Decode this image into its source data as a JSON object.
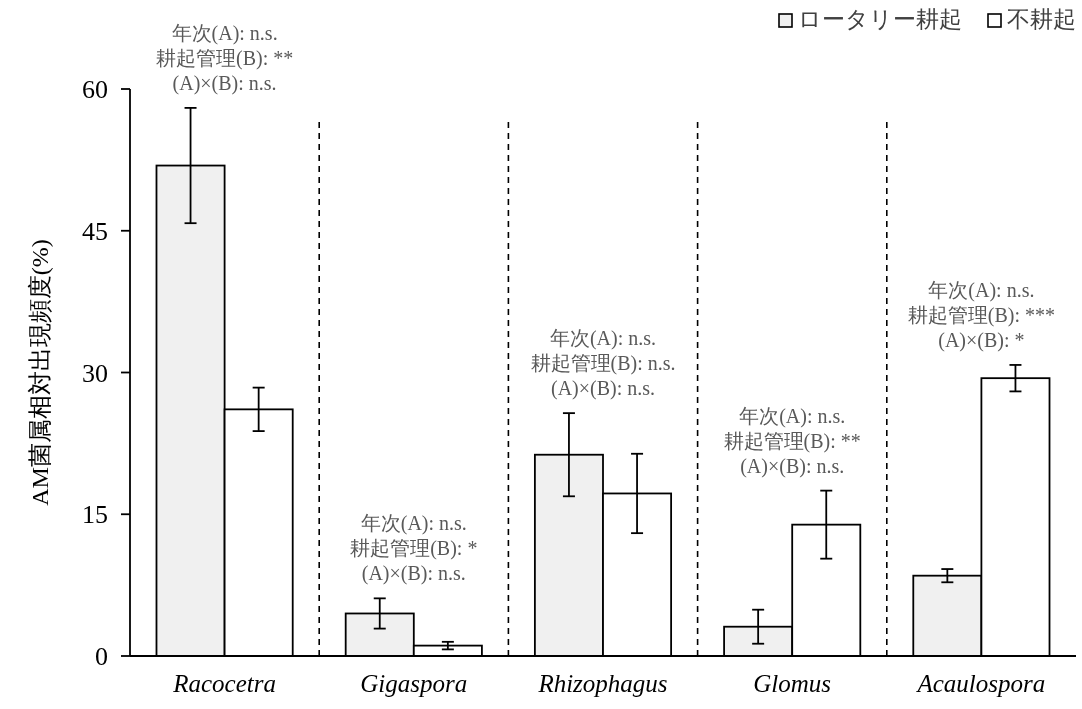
{
  "chart_data": {
    "type": "bar",
    "ylabel": "AM菌属相対出現頻度(%)",
    "categories": [
      "Racocetra",
      "Gigaspora",
      "Rhizophagus",
      "Glomus",
      "Acaulospora"
    ],
    "series": [
      {
        "name": "ロータリー耕起",
        "color": "#f0f0f0",
        "values": [
          51.9,
          4.5,
          21.3,
          3.1,
          8.5
        ],
        "errors": [
          6.1,
          1.6,
          4.4,
          1.8,
          0.7
        ]
      },
      {
        "name": "不耕起",
        "color": "#ffffff",
        "values": [
          26.1,
          1.1,
          17.2,
          13.9,
          29.4
        ],
        "errors": [
          2.3,
          0.4,
          4.2,
          3.6,
          1.4
        ]
      }
    ],
    "ylim": [
      0,
      60
    ],
    "yticks": [
      0,
      15,
      30,
      45,
      60
    ],
    "legend": "top right",
    "annotations": [
      "年次(A): n.s.",
      "耕起管理(B): **",
      "(A)×(B): n.s.",
      "年次(A): n.s.",
      "耕起管理(B): *",
      "(A)×(B): n.s.",
      "年次(A): n.s.",
      "耕起管理(B): n.s.",
      "(A)×(B): n.s.",
      "年次(A): n.s.",
      "耕起管理(B): **",
      "(A)×(B): n.s.",
      "年次(A): n.s.",
      "耕起管理(B): ***",
      "(A)×(B): *"
    ]
  }
}
